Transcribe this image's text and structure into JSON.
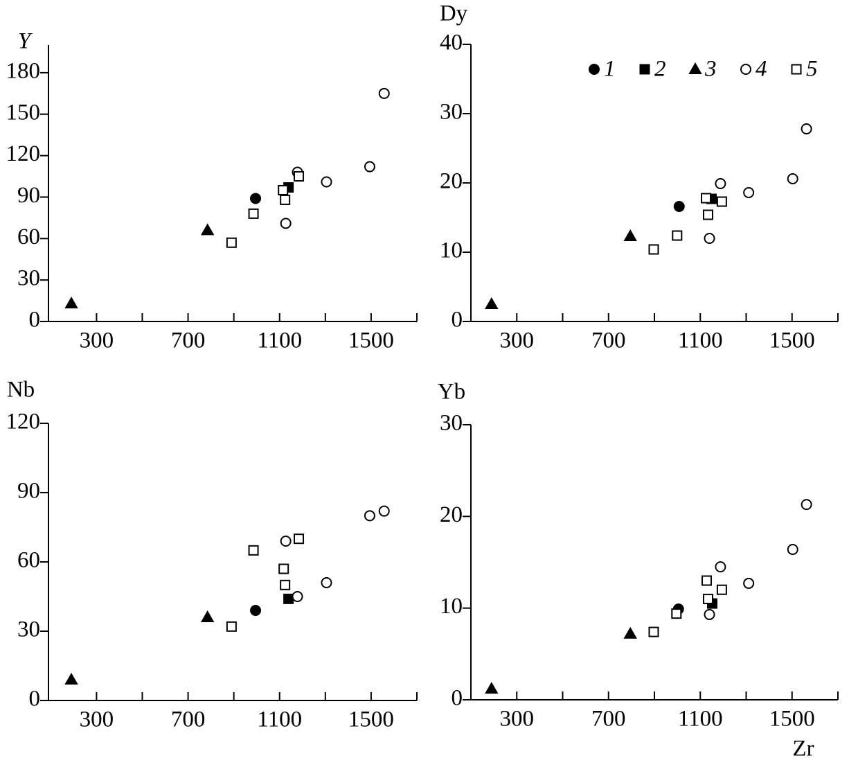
{
  "chart_data": [
    {
      "type": "scatter",
      "ylabel": "Y",
      "xlim": [
        90,
        1700
      ],
      "xticks": [
        300,
        700,
        1100,
        1500
      ],
      "xminorticks": [
        500,
        900,
        1300,
        1700
      ],
      "ylim": [
        0,
        200
      ],
      "yticks": [
        0,
        30,
        60,
        90,
        120,
        150,
        180
      ],
      "series": [
        {
          "marker": "circle",
          "filled": true,
          "color": "#000000",
          "x": [
            995
          ],
          "values": [
            89
          ]
        },
        {
          "marker": "square",
          "filled": true,
          "color": "#000000",
          "x": [
            1139
          ],
          "values": [
            97
          ]
        },
        {
          "marker": "triangle",
          "filled": true,
          "color": "#000000",
          "x": [
            190,
            785
          ],
          "values": [
            13,
            66
          ]
        },
        {
          "marker": "circle",
          "filled": false,
          "color": "#000000",
          "x": [
            1127,
            1178,
            1305,
            1494,
            1557
          ],
          "values": [
            71,
            108,
            101,
            112,
            165
          ]
        },
        {
          "marker": "square",
          "filled": false,
          "color": "#000000",
          "x": [
            890,
            986,
            1115,
            1124,
            1184
          ],
          "values": [
            57,
            78,
            95,
            88,
            105
          ]
        }
      ]
    },
    {
      "type": "scatter",
      "ylabel": "Dy",
      "legend": "top-right",
      "xlim": [
        100,
        1700
      ],
      "xticks": [
        300,
        700,
        1100,
        1500
      ],
      "xminorticks": [
        500,
        900,
        1300,
        1700
      ],
      "ylim": [
        0,
        40
      ],
      "yticks": [
        0,
        10,
        20,
        30,
        40
      ],
      "series": [
        {
          "name": "1",
          "marker": "circle",
          "filled": true,
          "color": "#000000",
          "x": [
            1008
          ],
          "values": [
            16.6
          ]
        },
        {
          "name": "2",
          "marker": "square",
          "filled": true,
          "color": "#000000",
          "x": [
            1149
          ],
          "values": [
            17.7
          ]
        },
        {
          "name": "3",
          "marker": "triangle",
          "filled": true,
          "color": "#000000",
          "x": [
            190,
            795
          ],
          "values": [
            2.5,
            12.3
          ]
        },
        {
          "name": "4",
          "marker": "circle",
          "filled": false,
          "color": "#000000",
          "x": [
            1140,
            1188,
            1311,
            1503,
            1563
          ],
          "values": [
            12,
            19.9,
            18.6,
            20.6,
            27.8
          ]
        },
        {
          "name": "5",
          "marker": "square",
          "filled": false,
          "color": "#000000",
          "x": [
            897,
            999,
            1125,
            1134,
            1194
          ],
          "values": [
            10.4,
            12.4,
            17.8,
            15.4,
            17.3
          ]
        }
      ]
    },
    {
      "type": "scatter",
      "ylabel": "Nb",
      "xlim": [
        90,
        1700
      ],
      "xticks": [
        300,
        700,
        1100,
        1500
      ],
      "xminorticks": [
        500,
        900,
        1300,
        1700
      ],
      "ylim": [
        0,
        120
      ],
      "yticks": [
        0,
        30,
        60,
        90,
        120
      ],
      "series": [
        {
          "marker": "circle",
          "filled": true,
          "color": "#000000",
          "x": [
            995
          ],
          "values": [
            39
          ]
        },
        {
          "marker": "square",
          "filled": true,
          "color": "#000000",
          "x": [
            1139
          ],
          "values": [
            44
          ]
        },
        {
          "marker": "triangle",
          "filled": true,
          "color": "#000000",
          "x": [
            190,
            785
          ],
          "values": [
            9,
            36
          ]
        },
        {
          "marker": "circle",
          "filled": false,
          "color": "#000000",
          "x": [
            1127,
            1178,
            1305,
            1494,
            1557
          ],
          "values": [
            69,
            45,
            51,
            80,
            82
          ]
        },
        {
          "marker": "square",
          "filled": false,
          "color": "#000000",
          "x": [
            890,
            986,
            1118,
            1124,
            1184
          ],
          "values": [
            32,
            65,
            57,
            50,
            70
          ]
        }
      ]
    },
    {
      "type": "scatter",
      "ylabel": "Yb",
      "xlabel": "Zr",
      "xlim": [
        100,
        1700
      ],
      "xticks": [
        300,
        700,
        1100,
        1500
      ],
      "xminorticks": [
        500,
        900,
        1300,
        1700
      ],
      "ylim": [
        0,
        30
      ],
      "yticks": [
        0,
        10,
        20,
        30
      ],
      "series": [
        {
          "marker": "circle",
          "filled": true,
          "color": "#000000",
          "x": [
            1005
          ],
          "values": [
            9.9
          ]
        },
        {
          "marker": "square",
          "filled": true,
          "color": "#000000",
          "x": [
            1152
          ],
          "values": [
            10.5
          ]
        },
        {
          "marker": "triangle",
          "filled": true,
          "color": "#000000",
          "x": [
            190,
            795
          ],
          "values": [
            1.2,
            7.2
          ]
        },
        {
          "marker": "circle",
          "filled": false,
          "color": "#000000",
          "x": [
            1140,
            1188,
            1311,
            1503,
            1563
          ],
          "values": [
            9.3,
            14.5,
            12.7,
            16.4,
            21.3
          ]
        },
        {
          "marker": "square",
          "filled": false,
          "color": "#000000",
          "x": [
            897,
            996,
            1128,
            1134,
            1194
          ],
          "values": [
            7.4,
            9.4,
            13,
            11,
            12
          ]
        }
      ]
    }
  ]
}
